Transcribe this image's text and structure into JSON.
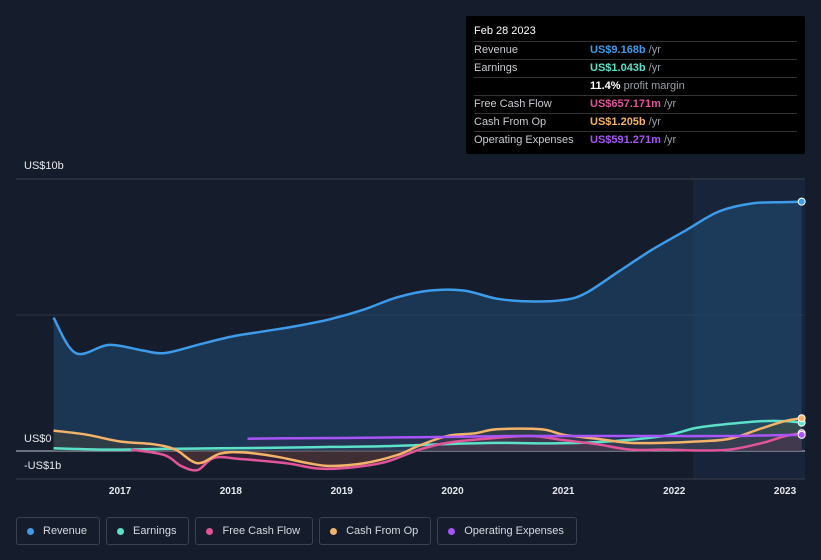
{
  "tooltip": {
    "date": "Feb 28 2023",
    "rows": [
      {
        "label": "Revenue",
        "value": "US$9.168b",
        "unit": "/yr",
        "color": "#3d9be9"
      },
      {
        "label": "Earnings",
        "value": "US$1.043b",
        "unit": "/yr",
        "color": "#5ce0c8"
      },
      {
        "label": "",
        "value": "11.4%",
        "unit": "profit margin",
        "color": "#ffffff"
      },
      {
        "label": "Free Cash Flow",
        "value": "US$657.171m",
        "unit": "/yr",
        "color": "#e0559a"
      },
      {
        "label": "Cash From Op",
        "value": "US$1.205b",
        "unit": "/yr",
        "color": "#f3b36a"
      },
      {
        "label": "Operating Expenses",
        "value": "US$591.271m",
        "unit": "/yr",
        "color": "#a855f7"
      }
    ]
  },
  "legend": [
    {
      "label": "Revenue",
      "color": "#3d9be9"
    },
    {
      "label": "Earnings",
      "color": "#5ce0c8"
    },
    {
      "label": "Free Cash Flow",
      "color": "#e0559a"
    },
    {
      "label": "Cash From Op",
      "color": "#f3b36a"
    },
    {
      "label": "Operating Expenses",
      "color": "#a855f7"
    }
  ],
  "chart_data": {
    "type": "line",
    "ylabels": [
      "US$10b",
      "US$0",
      "-US$1b"
    ],
    "xticks": [
      "2017",
      "2018",
      "2019",
      "2020",
      "2021",
      "2022",
      "2023"
    ],
    "ylim": [
      -1.0,
      10.0
    ],
    "xlim": [
      2016.35,
      2023.18
    ],
    "highlight_start": 2022.17,
    "series": [
      {
        "name": "Revenue",
        "color": "#3d9be9",
        "x": [
          2016.4,
          2016.6,
          2016.9,
          2017.2,
          2017.4,
          2017.7,
          2018.0,
          2018.3,
          2018.6,
          2018.9,
          2019.2,
          2019.5,
          2019.8,
          2020.1,
          2020.4,
          2020.7,
          2021.0,
          2021.2,
          2021.5,
          2021.8,
          2022.1,
          2022.4,
          2022.7,
          2023.0,
          2023.15
        ],
        "y": [
          4.9,
          3.6,
          3.9,
          3.7,
          3.6,
          3.9,
          4.2,
          4.4,
          4.6,
          4.85,
          5.2,
          5.65,
          5.9,
          5.9,
          5.6,
          5.5,
          5.55,
          5.8,
          6.6,
          7.4,
          8.1,
          8.8,
          9.1,
          9.15,
          9.168
        ]
      },
      {
        "name": "Earnings",
        "color": "#5ce0c8",
        "x": [
          2016.4,
          2016.9,
          2017.4,
          2017.9,
          2018.4,
          2018.9,
          2019.4,
          2019.9,
          2020.4,
          2020.9,
          2021.4,
          2021.9,
          2022.2,
          2022.5,
          2022.8,
          2023.0,
          2023.15
        ],
        "y": [
          0.1,
          0.05,
          0.08,
          0.1,
          0.12,
          0.15,
          0.18,
          0.25,
          0.3,
          0.28,
          0.35,
          0.55,
          0.85,
          1.0,
          1.1,
          1.1,
          1.043
        ]
      },
      {
        "name": "Free Cash Flow",
        "color": "#e0559a",
        "x": [
          2017.1,
          2017.4,
          2017.55,
          2017.7,
          2017.85,
          2018.1,
          2018.5,
          2018.8,
          2019.1,
          2019.4,
          2019.7,
          2019.95,
          2020.3,
          2020.7,
          2021.0,
          2021.3,
          2021.6,
          2021.9,
          2022.2,
          2022.5,
          2022.8,
          2023.0,
          2023.15
        ],
        "y": [
          0.05,
          -0.15,
          -0.55,
          -0.7,
          -0.25,
          -0.3,
          -0.45,
          -0.65,
          -0.6,
          -0.4,
          0.05,
          0.3,
          0.45,
          0.55,
          0.4,
          0.25,
          0.05,
          0.05,
          0.02,
          0.05,
          0.3,
          0.55,
          0.657
        ]
      },
      {
        "name": "Cash From Op",
        "color": "#f3b36a",
        "x": [
          2016.4,
          2016.7,
          2017.0,
          2017.3,
          2017.5,
          2017.7,
          2017.9,
          2018.1,
          2018.4,
          2018.7,
          2018.9,
          2019.2,
          2019.5,
          2019.7,
          2019.95,
          2020.2,
          2020.4,
          2020.8,
          2021.0,
          2021.3,
          2021.6,
          2021.9,
          2022.2,
          2022.5,
          2022.8,
          2023.0,
          2023.15
        ],
        "y": [
          0.75,
          0.6,
          0.35,
          0.25,
          0.05,
          -0.45,
          -0.1,
          -0.05,
          -0.2,
          -0.45,
          -0.55,
          -0.45,
          -0.15,
          0.2,
          0.55,
          0.65,
          0.8,
          0.8,
          0.6,
          0.45,
          0.3,
          0.3,
          0.35,
          0.45,
          0.85,
          1.1,
          1.205
        ]
      },
      {
        "name": "Operating Expenses",
        "color": "#a855f7",
        "x": [
          2018.15,
          2018.6,
          2019.0,
          2019.5,
          2020.0,
          2020.5,
          2021.0,
          2021.5,
          2022.0,
          2022.5,
          2022.9,
          2023.15
        ],
        "y": [
          0.45,
          0.47,
          0.48,
          0.5,
          0.52,
          0.55,
          0.55,
          0.55,
          0.55,
          0.55,
          0.58,
          0.591
        ]
      }
    ]
  }
}
